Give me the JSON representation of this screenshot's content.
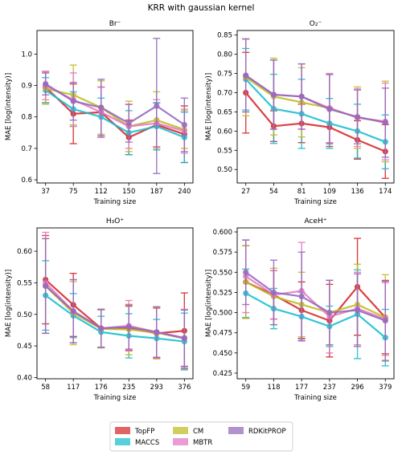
{
  "suptitle": "KRR with gaussian kernel",
  "colors": {
    "TopFP": "#d62728",
    "MACCS": "#17becf",
    "CM": "#bcbd22",
    "MBTR": "#e377c2",
    "RDKitPROP": "#9467bd"
  },
  "chart_data": [
    {
      "type": "line",
      "title": "Br⁻",
      "xlabel": "Training size",
      "ylabel": "MAE [log(intensity)]",
      "x": [
        37,
        75,
        112,
        150,
        187,
        240
      ],
      "ylim": [
        0.59,
        1.075
      ],
      "yticks": [
        0.6,
        0.7,
        0.8,
        0.9,
        1.0
      ],
      "ytick_labels": [
        "0.6",
        "0.7",
        "0.8",
        "0.9",
        "1.0"
      ],
      "series": [
        {
          "name": "TopFP",
          "values": [
            0.895,
            0.81,
            0.815,
            0.735,
            0.775,
            0.745
          ],
          "err": [
            0.05,
            0.095,
            0.08,
            0.055,
            0.07,
            0.09
          ]
        },
        {
          "name": "MACCS",
          "values": [
            0.885,
            0.825,
            0.8,
            0.75,
            0.77,
            0.735
          ],
          "err": [
            0.04,
            0.055,
            0.06,
            0.07,
            0.075,
            0.08
          ]
        },
        {
          "name": "CM",
          "values": [
            0.89,
            0.87,
            0.83,
            0.77,
            0.79,
            0.76
          ],
          "err": [
            0.05,
            0.095,
            0.085,
            0.08,
            0.09,
            0.06
          ]
        },
        {
          "name": "MBTR",
          "values": [
            0.9,
            0.855,
            0.815,
            0.77,
            0.78,
            0.755
          ],
          "err": [
            0.045,
            0.085,
            0.08,
            0.07,
            0.075,
            0.07
          ]
        },
        {
          "name": "RDKitPROP",
          "values": [
            0.905,
            0.85,
            0.83,
            0.78,
            0.835,
            0.775
          ],
          "err": [
            0.035,
            0.06,
            0.09,
            0.06,
            0.215,
            0.085
          ]
        }
      ]
    },
    {
      "type": "line",
      "title": "O₂⁻",
      "xlabel": "Training size",
      "ylabel": "MAE [log(intensity)]",
      "x": [
        27,
        54,
        81,
        109,
        136,
        174
      ],
      "ylim": [
        0.465,
        0.862
      ],
      "yticks": [
        0.5,
        0.55,
        0.6,
        0.65,
        0.7,
        0.75,
        0.8,
        0.85
      ],
      "ytick_labels": [
        "0.50",
        "0.55",
        "0.60",
        "0.65",
        "0.70",
        "0.75",
        "0.80",
        "0.85"
      ],
      "series": [
        {
          "name": "TopFP",
          "values": [
            0.7,
            0.613,
            0.62,
            0.61,
            0.577,
            0.547
          ],
          "err": [
            0.105,
            0.04,
            0.05,
            0.05,
            0.05,
            0.07
          ]
        },
        {
          "name": "MACCS",
          "values": [
            0.735,
            0.658,
            0.645,
            0.62,
            0.6,
            0.572
          ],
          "err": [
            0.08,
            0.09,
            0.09,
            0.065,
            0.07,
            0.07
          ]
        },
        {
          "name": "CM",
          "values": [
            0.74,
            0.69,
            0.675,
            0.66,
            0.635,
            0.625
          ],
          "err": [
            0.1,
            0.1,
            0.09,
            0.09,
            0.08,
            0.105
          ]
        },
        {
          "name": "MBTR",
          "values": [
            0.745,
            0.695,
            0.69,
            0.66,
            0.635,
            0.625
          ],
          "err": [
            0.095,
            0.09,
            0.085,
            0.09,
            0.075,
            0.1
          ]
        },
        {
          "name": "RDKitPROP",
          "values": [
            0.745,
            0.695,
            0.69,
            0.657,
            0.637,
            0.622
          ],
          "err": [
            0.095,
            0.09,
            0.085,
            0.09,
            0.07,
            0.09
          ]
        }
      ]
    },
    {
      "type": "line",
      "title": "H₃O⁺",
      "xlabel": "Training size",
      "ylabel": "MAE [log(intensity)]",
      "x": [
        58,
        117,
        176,
        235,
        293,
        376
      ],
      "ylim": [
        0.398,
        0.637
      ],
      "yticks": [
        0.4,
        0.45,
        0.5,
        0.55,
        0.6
      ],
      "ytick_labels": [
        "0.40",
        "0.45",
        "0.50",
        "0.55",
        "0.60"
      ],
      "series": [
        {
          "name": "TopFP",
          "values": [
            0.555,
            0.515,
            0.478,
            0.478,
            0.47,
            0.474
          ],
          "err": [
            0.07,
            0.05,
            0.03,
            0.035,
            0.04,
            0.06
          ]
        },
        {
          "name": "MACCS",
          "values": [
            0.53,
            0.498,
            0.472,
            0.466,
            0.462,
            0.457
          ],
          "err": [
            0.055,
            0.035,
            0.025,
            0.035,
            0.03,
            0.045
          ]
        },
        {
          "name": "CM",
          "values": [
            0.545,
            0.502,
            0.477,
            0.476,
            0.471,
            0.462
          ],
          "err": [
            0.075,
            0.05,
            0.03,
            0.04,
            0.04,
            0.045
          ]
        },
        {
          "name": "MBTR",
          "values": [
            0.55,
            0.505,
            0.478,
            0.482,
            0.472,
            0.463
          ],
          "err": [
            0.08,
            0.05,
            0.03,
            0.04,
            0.04,
            0.045
          ]
        },
        {
          "name": "RDKitPROP",
          "values": [
            0.545,
            0.505,
            0.478,
            0.48,
            0.472,
            0.462
          ],
          "err": [
            0.075,
            0.05,
            0.03,
            0.035,
            0.04,
            0.045
          ]
        }
      ]
    },
    {
      "type": "line",
      "title": "AceH⁺",
      "xlabel": "Training size",
      "ylabel": "MAE [log(intensity)]",
      "x": [
        59,
        118,
        177,
        237,
        296,
        379
      ],
      "ylim": [
        0.418,
        0.605
      ],
      "yticks": [
        0.425,
        0.45,
        0.475,
        0.5,
        0.525,
        0.55,
        0.575,
        0.6
      ],
      "ytick_labels": [
        "0.425",
        "0.450",
        "0.475",
        "0.500",
        "0.525",
        "0.550",
        "0.575",
        "0.600"
      ],
      "series": [
        {
          "name": "TopFP",
          "values": [
            0.538,
            0.522,
            0.503,
            0.49,
            0.532,
            0.494
          ],
          "err": [
            0.045,
            0.03,
            0.035,
            0.045,
            0.06,
            0.045
          ]
        },
        {
          "name": "MACCS",
          "values": [
            0.524,
            0.505,
            0.495,
            0.483,
            0.498,
            0.469
          ],
          "err": [
            0.03,
            0.025,
            0.03,
            0.025,
            0.055,
            0.035
          ]
        },
        {
          "name": "CM",
          "values": [
            0.538,
            0.52,
            0.51,
            0.5,
            0.51,
            0.494
          ],
          "err": [
            0.045,
            0.035,
            0.04,
            0.04,
            0.05,
            0.053
          ]
        },
        {
          "name": "MBTR",
          "values": [
            0.545,
            0.522,
            0.527,
            0.495,
            0.505,
            0.492
          ],
          "err": [
            0.045,
            0.03,
            0.06,
            0.045,
            0.045,
            0.045
          ]
        },
        {
          "name": "RDKitPROP",
          "values": [
            0.55,
            0.525,
            0.52,
            0.5,
            0.503,
            0.49
          ],
          "err": [
            0.04,
            0.04,
            0.055,
            0.04,
            0.045,
            0.05
          ]
        }
      ]
    }
  ],
  "legend": {
    "position": "bottom-center",
    "entries": [
      "TopFP",
      "MACCS",
      "CM",
      "MBTR",
      "RDKitPROP"
    ]
  }
}
